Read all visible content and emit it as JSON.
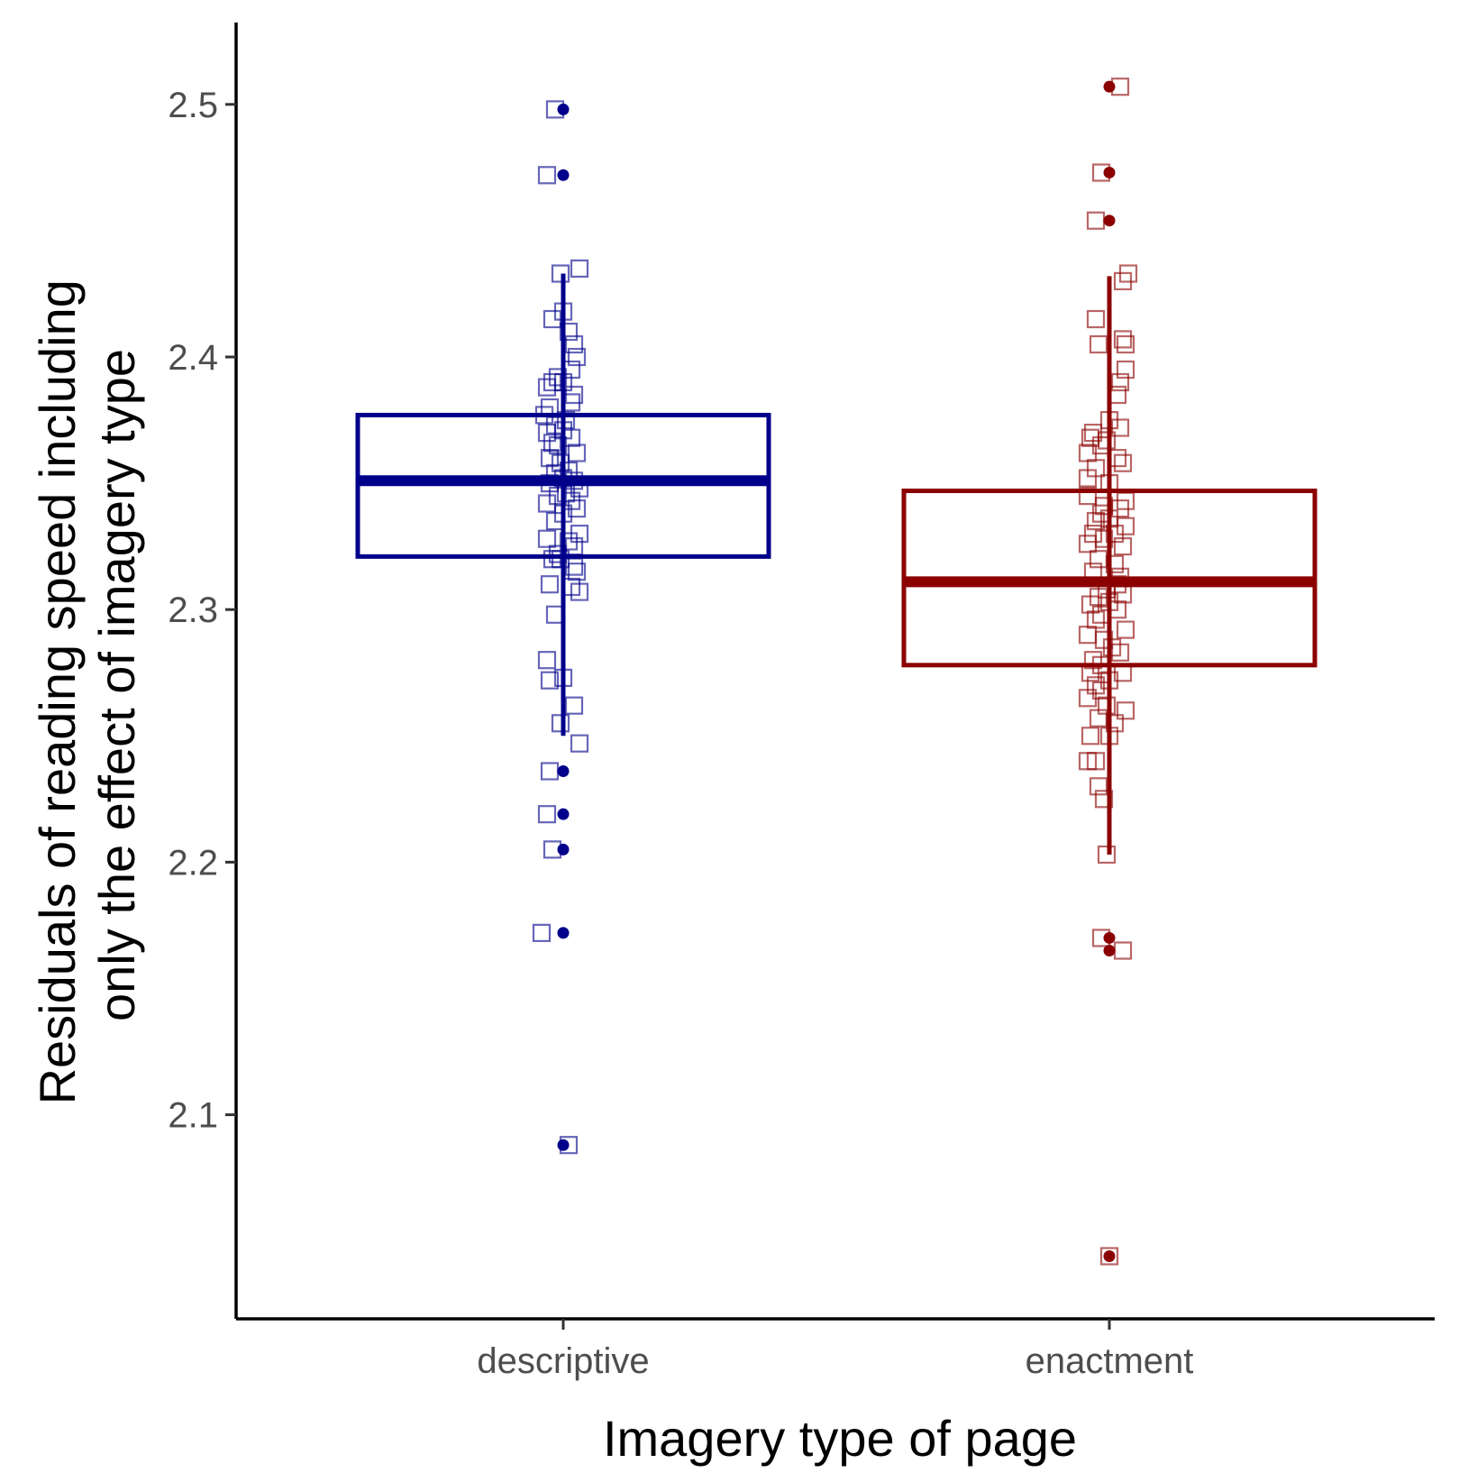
{
  "chart_data": {
    "type": "boxplot",
    "xlabel": "Imagery type of page",
    "ylabel": "Residuals of reading speed including only the effect of imagery type",
    "ylabel_lines": [
      "Residuals of reading speed including",
      "only the effect of imagery type"
    ],
    "categories": [
      "descriptive",
      "enactment"
    ],
    "ylim": [
      2.03,
      2.53
    ],
    "yticks": [
      "2.1",
      "2.2",
      "2.3",
      "2.4",
      "2.5"
    ],
    "grid": false,
    "legend": "none",
    "series": [
      {
        "category": "descriptive",
        "color": "#00008b",
        "box": {
          "q1": 2.321,
          "median": 2.351,
          "q3": 2.377,
          "whisker_low": 2.25,
          "whisker_high": 2.433
        },
        "outliers": [
          2.498,
          2.472,
          2.236,
          2.219,
          2.205,
          2.172,
          2.088
        ],
        "points": [
          [
            -0.03,
            2.498
          ],
          [
            -0.06,
            2.472
          ],
          [
            -0.01,
            2.433
          ],
          [
            0.06,
            2.435
          ],
          [
            -0.04,
            2.415
          ],
          [
            0.0,
            2.418
          ],
          [
            0.02,
            2.41
          ],
          [
            0.04,
            2.405
          ],
          [
            0.05,
            2.4
          ],
          [
            0.03,
            2.395
          ],
          [
            -0.02,
            2.392
          ],
          [
            -0.04,
            2.39
          ],
          [
            0.0,
            2.39
          ],
          [
            -0.06,
            2.388
          ],
          [
            0.04,
            2.385
          ],
          [
            0.03,
            2.382
          ],
          [
            -0.05,
            2.38
          ],
          [
            -0.07,
            2.377
          ],
          [
            0.01,
            2.375
          ],
          [
            -0.03,
            2.373
          ],
          [
            0.0,
            2.371
          ],
          [
            -0.06,
            2.37
          ],
          [
            0.03,
            2.368
          ],
          [
            -0.04,
            2.366
          ],
          [
            -0.02,
            2.365
          ],
          [
            0.05,
            2.362
          ],
          [
            -0.05,
            2.36
          ],
          [
            -0.01,
            2.358
          ],
          [
            0.02,
            2.355
          ],
          [
            -0.03,
            2.354
          ],
          [
            0.0,
            2.352
          ],
          [
            0.04,
            2.351
          ],
          [
            -0.05,
            2.35
          ],
          [
            0.06,
            2.348
          ],
          [
            0.01,
            2.346
          ],
          [
            -0.02,
            2.345
          ],
          [
            0.03,
            2.343
          ],
          [
            -0.06,
            2.342
          ],
          [
            0.05,
            2.34
          ],
          [
            0.0,
            2.338
          ],
          [
            -0.03,
            2.335
          ],
          [
            0.06,
            2.33
          ],
          [
            -0.06,
            2.328
          ],
          [
            0.02,
            2.327
          ],
          [
            0.04,
            2.325
          ],
          [
            -0.02,
            2.322
          ],
          [
            -0.04,
            2.32
          ],
          [
            -0.01,
            2.32
          ],
          [
            0.04,
            2.317
          ],
          [
            0.05,
            2.315
          ],
          [
            -0.05,
            2.31
          ],
          [
            0.03,
            2.309
          ],
          [
            0.06,
            2.307
          ],
          [
            -0.03,
            2.298
          ],
          [
            -0.06,
            2.28
          ],
          [
            0.0,
            2.273
          ],
          [
            -0.05,
            2.272
          ],
          [
            0.04,
            2.262
          ],
          [
            -0.01,
            2.255
          ],
          [
            0.06,
            2.247
          ],
          [
            -0.05,
            2.236
          ],
          [
            -0.06,
            2.219
          ],
          [
            -0.04,
            2.205
          ],
          [
            -0.08,
            2.172
          ],
          [
            0.02,
            2.088
          ]
        ]
      },
      {
        "category": "enactment",
        "color": "#8b0000",
        "box": {
          "q1": 2.278,
          "median": 2.311,
          "q3": 2.347,
          "whisker_low": 2.203,
          "whisker_high": 2.432
        },
        "outliers": [
          2.507,
          2.473,
          2.454,
          2.17,
          2.165,
          2.044
        ],
        "points": [
          [
            0.04,
            2.507
          ],
          [
            -0.03,
            2.473
          ],
          [
            -0.05,
            2.454
          ],
          [
            0.07,
            2.433
          ],
          [
            0.05,
            2.43
          ],
          [
            -0.05,
            2.415
          ],
          [
            0.05,
            2.407
          ],
          [
            -0.04,
            2.405
          ],
          [
            0.06,
            2.405
          ],
          [
            0.06,
            2.395
          ],
          [
            0.04,
            2.39
          ],
          [
            0.03,
            2.385
          ],
          [
            0.0,
            2.375
          ],
          [
            0.04,
            2.372
          ],
          [
            -0.06,
            2.37
          ],
          [
            -0.07,
            2.368
          ],
          [
            -0.01,
            2.367
          ],
          [
            -0.03,
            2.365
          ],
          [
            -0.08,
            2.362
          ],
          [
            0.03,
            2.36
          ],
          [
            0.05,
            2.358
          ],
          [
            -0.05,
            2.356
          ],
          [
            -0.08,
            2.352
          ],
          [
            0.0,
            2.35
          ],
          [
            -0.08,
            2.345
          ],
          [
            0.06,
            2.343
          ],
          [
            -0.02,
            2.341
          ],
          [
            0.04,
            2.34
          ],
          [
            -0.03,
            2.338
          ],
          [
            0.0,
            2.336
          ],
          [
            -0.05,
            2.335
          ],
          [
            0.06,
            2.333
          ],
          [
            -0.06,
            2.33
          ],
          [
            0.02,
            2.33
          ],
          [
            -0.02,
            2.328
          ],
          [
            -0.08,
            2.326
          ],
          [
            0.05,
            2.325
          ],
          [
            -0.04,
            2.32
          ],
          [
            0.02,
            2.318
          ],
          [
            -0.06,
            2.315
          ],
          [
            0.04,
            2.313
          ],
          [
            0.03,
            2.31
          ],
          [
            -0.01,
            2.308
          ],
          [
            0.05,
            2.306
          ],
          [
            -0.04,
            2.305
          ],
          [
            0.0,
            2.303
          ],
          [
            -0.07,
            2.302
          ],
          [
            0.03,
            2.3
          ],
          [
            -0.03,
            2.298
          ],
          [
            -0.05,
            2.296
          ],
          [
            0.06,
            2.292
          ],
          [
            -0.08,
            2.29
          ],
          [
            -0.02,
            2.288
          ],
          [
            0.01,
            2.285
          ],
          [
            0.04,
            2.283
          ],
          [
            -0.06,
            2.28
          ],
          [
            -0.03,
            2.278
          ],
          [
            -0.07,
            2.275
          ],
          [
            0.05,
            2.275
          ],
          [
            0.0,
            2.272
          ],
          [
            -0.05,
            2.27
          ],
          [
            -0.03,
            2.268
          ],
          [
            -0.08,
            2.265
          ],
          [
            -0.01,
            2.262
          ],
          [
            0.06,
            2.26
          ],
          [
            -0.04,
            2.257
          ],
          [
            0.02,
            2.255
          ],
          [
            -0.07,
            2.25
          ],
          [
            0.0,
            2.25
          ],
          [
            -0.05,
            2.24
          ],
          [
            -0.08,
            2.24
          ],
          [
            -0.04,
            2.23
          ],
          [
            -0.02,
            2.225
          ],
          [
            -0.01,
            2.203
          ],
          [
            -0.03,
            2.17
          ],
          [
            0.05,
            2.165
          ],
          [
            0.0,
            2.044
          ]
        ]
      }
    ]
  }
}
